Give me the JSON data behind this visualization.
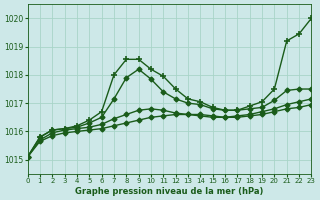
{
  "title": "Graphe pression niveau de la mer (hPa)",
  "bg_color": "#cde8e8",
  "grid_color": "#a8d4c8",
  "line_color": "#1a5c1a",
  "xlim": [
    0,
    23
  ],
  "ylim": [
    1014.5,
    1020.5
  ],
  "yticks": [
    1015,
    1016,
    1017,
    1018,
    1019,
    1020
  ],
  "xticks": [
    0,
    1,
    2,
    3,
    4,
    5,
    6,
    7,
    8,
    9,
    10,
    11,
    12,
    13,
    14,
    15,
    16,
    17,
    18,
    19,
    20,
    21,
    22,
    23
  ],
  "series": [
    {
      "x": [
        0,
        1,
        2,
        3,
        4,
        5,
        6,
        7,
        8,
        9,
        10,
        11,
        12,
        13,
        14,
        15,
        16,
        17,
        18,
        19,
        20,
        21,
        22,
        23
      ],
      "y": [
        1015.1,
        1015.8,
        1016.05,
        1016.1,
        1016.2,
        1016.4,
        1016.7,
        1018.0,
        1018.55,
        1018.55,
        1018.2,
        1017.95,
        1017.5,
        1017.15,
        1017.05,
        1016.85,
        1016.75,
        1016.75,
        1016.9,
        1017.05,
        1017.5,
        1019.2,
        1019.45,
        1020.0
      ],
      "marker": "+",
      "markersize": 4.5,
      "lw": 1.0
    },
    {
      "x": [
        0,
        1,
        2,
        3,
        4,
        5,
        6,
        7,
        8,
        9,
        10,
        11,
        12,
        13,
        14,
        15,
        16,
        17,
        18,
        19,
        20,
        21,
        22,
        23
      ],
      "y": [
        1015.1,
        1015.8,
        1016.05,
        1016.1,
        1016.15,
        1016.3,
        1016.5,
        1017.15,
        1017.9,
        1018.2,
        1017.85,
        1017.4,
        1017.15,
        1017.0,
        1016.95,
        1016.8,
        1016.75,
        1016.75,
        1016.8,
        1016.85,
        1017.1,
        1017.45,
        1017.5,
        1017.5
      ],
      "marker": "D",
      "markersize": 2.5,
      "lw": 1.0
    },
    {
      "x": [
        0,
        1,
        2,
        3,
        4,
        5,
        6,
        7,
        8,
        9,
        10,
        11,
        12,
        13,
        14,
        15,
        16,
        17,
        18,
        19,
        20,
        21,
        22,
        23
      ],
      "y": [
        1015.1,
        1015.7,
        1015.95,
        1016.05,
        1016.1,
        1016.15,
        1016.25,
        1016.45,
        1016.6,
        1016.75,
        1016.8,
        1016.75,
        1016.65,
        1016.6,
        1016.55,
        1016.5,
        1016.5,
        1016.55,
        1016.6,
        1016.7,
        1016.8,
        1016.95,
        1017.05,
        1017.15
      ],
      "marker": "D",
      "markersize": 2.5,
      "lw": 1.0
    },
    {
      "x": [
        0,
        1,
        2,
        3,
        4,
        5,
        6,
        7,
        8,
        9,
        10,
        11,
        12,
        13,
        14,
        15,
        16,
        17,
        18,
        19,
        20,
        21,
        22,
        23
      ],
      "y": [
        1015.1,
        1015.65,
        1015.85,
        1015.95,
        1016.0,
        1016.05,
        1016.1,
        1016.2,
        1016.3,
        1016.4,
        1016.5,
        1016.55,
        1016.6,
        1016.6,
        1016.6,
        1016.55,
        1016.5,
        1016.5,
        1016.55,
        1016.6,
        1016.7,
        1016.8,
        1016.85,
        1016.95
      ],
      "marker": "D",
      "markersize": 2.5,
      "lw": 1.0
    }
  ]
}
